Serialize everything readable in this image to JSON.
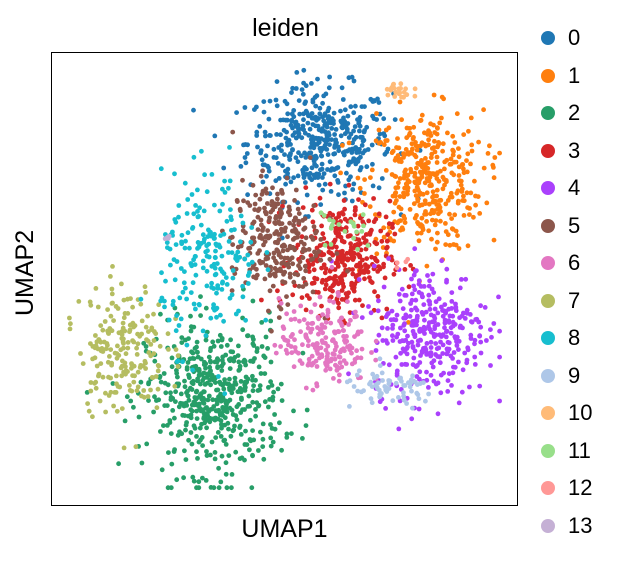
{
  "chart_data": {
    "type": "scatter",
    "title": "leiden",
    "xlabel": "UMAP1",
    "ylabel": "UMAP2",
    "xlim": [
      0,
      100
    ],
    "ylim": [
      0,
      100
    ],
    "grid": false,
    "ticks": false,
    "legend_position": "right",
    "legend": [
      {
        "label": "0",
        "color": "#1f77b4"
      },
      {
        "label": "1",
        "color": "#ff7f0e"
      },
      {
        "label": "2",
        "color": "#279e68"
      },
      {
        "label": "3",
        "color": "#d62728"
      },
      {
        "label": "4",
        "color": "#aa40fc"
      },
      {
        "label": "5",
        "color": "#8c564b"
      },
      {
        "label": "6",
        "color": "#e377c2"
      },
      {
        "label": "7",
        "color": "#b5bd61"
      },
      {
        "label": "8",
        "color": "#17becf"
      },
      {
        "label": "9",
        "color": "#aec7e8"
      },
      {
        "label": "10",
        "color": "#ffbb78"
      },
      {
        "label": "11",
        "color": "#98df8a"
      },
      {
        "label": "12",
        "color": "#ff9896"
      },
      {
        "label": "13",
        "color": "#c5b0d5"
      }
    ],
    "clusters": [
      {
        "label": "0",
        "cx": 58,
        "cy": 82,
        "rx": 15,
        "ry": 12,
        "n": 420
      },
      {
        "label": "1",
        "cx": 82,
        "cy": 73,
        "rx": 12,
        "ry": 15,
        "n": 380
      },
      {
        "label": "2",
        "cx": 34,
        "cy": 22,
        "rx": 14,
        "ry": 16,
        "n": 520
      },
      {
        "label": "3",
        "cx": 63,
        "cy": 55,
        "rx": 10,
        "ry": 12,
        "n": 330
      },
      {
        "label": "4",
        "cx": 83,
        "cy": 38,
        "rx": 12,
        "ry": 14,
        "n": 340
      },
      {
        "label": "5",
        "cx": 48,
        "cy": 59,
        "rx": 9,
        "ry": 13,
        "n": 260
      },
      {
        "label": "6",
        "cx": 59,
        "cy": 35,
        "rx": 9,
        "ry": 9,
        "n": 190
      },
      {
        "label": "7",
        "cx": 13,
        "cy": 34,
        "rx": 9,
        "ry": 14,
        "n": 200
      },
      {
        "label": "8",
        "cx": 33,
        "cy": 54,
        "rx": 10,
        "ry": 18,
        "n": 200
      },
      {
        "label": "9",
        "cx": 74,
        "cy": 24,
        "rx": 10,
        "ry": 4,
        "n": 70
      },
      {
        "label": "10",
        "cx": 76,
        "cy": 94,
        "rx": 3,
        "ry": 3,
        "n": 22
      },
      {
        "label": "11",
        "cx": 64,
        "cy": 62,
        "rx": 6,
        "ry": 5,
        "n": 20
      },
      {
        "label": "12",
        "cx": 77,
        "cy": 55,
        "rx": 3,
        "ry": 3,
        "n": 4
      },
      {
        "label": "13",
        "cx": 23,
        "cy": 59,
        "rx": 1,
        "ry": 1,
        "n": 4
      }
    ]
  }
}
